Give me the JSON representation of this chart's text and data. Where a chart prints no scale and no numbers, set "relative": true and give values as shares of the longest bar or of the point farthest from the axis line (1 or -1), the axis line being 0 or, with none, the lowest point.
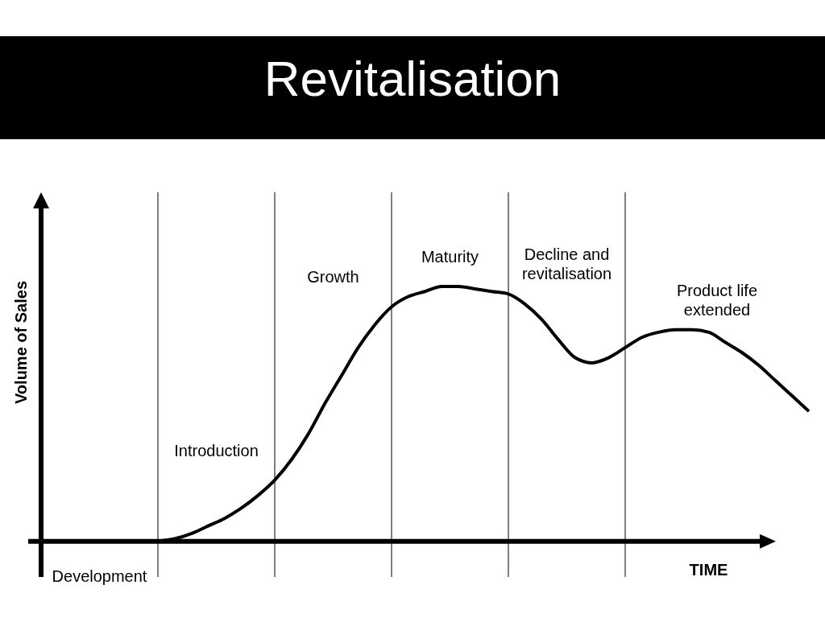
{
  "chart_data": {
    "type": "line",
    "title": "Revitalisation",
    "xlabel": "TIME",
    "ylabel": "Volume of Sales",
    "relative": true,
    "grid": "x",
    "categories": [
      null,
      null,
      null,
      null,
      null,
      null,
      null,
      null,
      null,
      null,
      null,
      null,
      null,
      null,
      null,
      null,
      null,
      null,
      null,
      null,
      null,
      null,
      null,
      null,
      null,
      null,
      null,
      null,
      null,
      null,
      null,
      null,
      null,
      null,
      null,
      null,
      null,
      null,
      null,
      null,
      null,
      null,
      null,
      null,
      null,
      null,
      null
    ],
    "values": [
      null,
      null,
      null,
      null,
      null,
      null,
      null,
      0,
      0.01,
      0.03,
      0.06,
      0.09,
      0.13,
      0.18,
      0.24,
      0.32,
      0.42,
      0.54,
      0.65,
      0.76,
      0.85,
      0.92,
      0.96,
      0.98,
      1,
      1,
      0.99,
      0.98,
      0.97,
      0.93,
      0.87,
      0.79,
      0.72,
      0.7,
      0.72,
      0.76,
      0.8,
      0.82,
      0.83,
      0.83,
      0.82,
      0.78,
      0.74,
      0.69,
      0.63,
      0.57,
      0.51
    ],
    "color": "#000000",
    "annotations": [
      "Development",
      "Introduction",
      "Growth",
      "Maturity",
      "Decline and revitalisation",
      "Product life extended"
    ]
  }
}
